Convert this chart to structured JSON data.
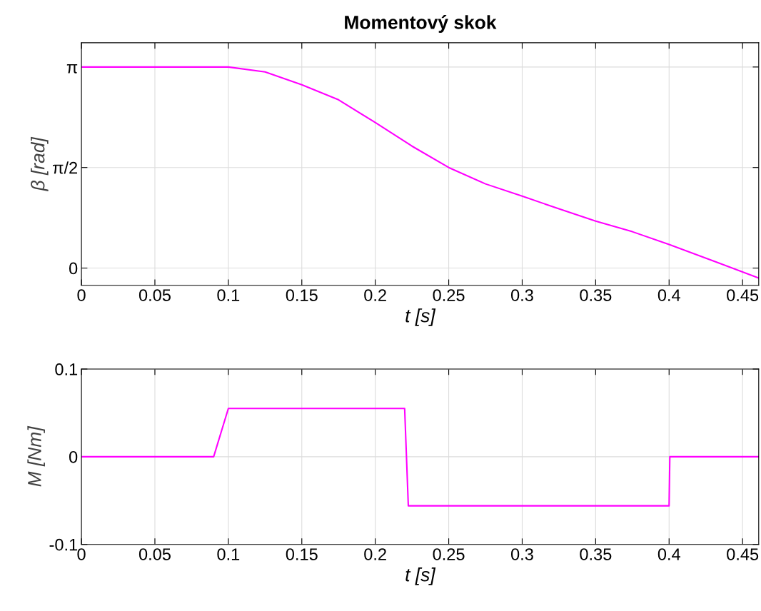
{
  "chart_data": [
    {
      "type": "line",
      "title": "Momentový skok",
      "xlabel": "t [s]",
      "ylabel": "β [rad]",
      "x": [
        0,
        0.05,
        0.1,
        0.125,
        0.15,
        0.175,
        0.2,
        0.225,
        0.25,
        0.275,
        0.3,
        0.325,
        0.35,
        0.375,
        0.4,
        0.43,
        0.461
      ],
      "series": [
        {
          "color": "#ff00ff",
          "values": [
            3.1416,
            3.1416,
            3.1416,
            3.064,
            2.863,
            2.629,
            2.273,
            1.905,
            1.571,
            1.315,
            1.125,
            0.925,
            0.735,
            0.568,
            0.368,
            0.111,
            -0.156
          ]
        }
      ],
      "xlim": [
        0,
        0.461
      ],
      "ylim": [
        -0.27,
        3.52
      ],
      "xticks": [
        0,
        0.05,
        0.1,
        0.15,
        0.2,
        0.25,
        0.3,
        0.35,
        0.4,
        0.45
      ],
      "yticks": [
        0,
        {
          "value": 1.5708,
          "label": "π/2"
        },
        {
          "value": 3.1416,
          "label": "π"
        }
      ],
      "grid": true
    },
    {
      "type": "line",
      "xlabel": "t [s]",
      "ylabel": "M [Nm]",
      "x": [
        0,
        0.09,
        0.1,
        0.22,
        0.2225,
        0.4,
        0.4005,
        0.461
      ],
      "series": [
        {
          "color": "#ff00ff",
          "values": [
            0,
            0,
            0.055,
            0.055,
            -0.056,
            -0.056,
            0,
            0
          ]
        }
      ],
      "xlim": [
        0,
        0.461
      ],
      "ylim": [
        -0.1,
        0.1
      ],
      "xticks": [
        0,
        0.05,
        0.1,
        0.15,
        0.2,
        0.25,
        0.3,
        0.35,
        0.4,
        0.45
      ],
      "yticks": [
        -0.1,
        0,
        0.1
      ],
      "grid": true
    }
  ]
}
